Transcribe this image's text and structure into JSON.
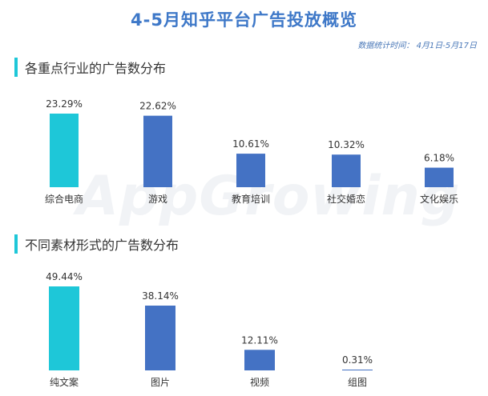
{
  "header": {
    "title": "4-5月知乎平台广告投放概览",
    "note": "数据统计时间： 4月1日-5月17日"
  },
  "watermark": {
    "text": "AppGrowing"
  },
  "sections": [
    {
      "label": "各重点行业的广告数分布"
    },
    {
      "label": "不同素材形式的广告数分布"
    }
  ],
  "colors": {
    "highlight": "#1ec7d8",
    "bar": "#4472c4",
    "accent": "#1ec7d8",
    "title": "#3e78c8"
  },
  "chart_data": [
    {
      "type": "bar",
      "title": "各重点行业的广告数分布",
      "categories": [
        "综合电商",
        "游戏",
        "教育培训",
        "社交婚恋",
        "文化娱乐"
      ],
      "values": [
        23.29,
        22.62,
        10.61,
        10.32,
        6.18
      ],
      "value_labels": [
        "23.29%",
        "22.62%",
        "10.61%",
        "10.32%",
        "6.18%"
      ],
      "unit": "%",
      "ylim": [
        0,
        23.29
      ],
      "grid": false,
      "legend": "none",
      "highlight_index": 0
    },
    {
      "type": "bar",
      "title": "不同素材形式的广告数分布",
      "categories": [
        "纯文案",
        "图片",
        "视频",
        "组图"
      ],
      "values": [
        49.44,
        38.14,
        12.11,
        0.31
      ],
      "value_labels": [
        "49.44%",
        "38.14%",
        "12.11%",
        "0.31%"
      ],
      "unit": "%",
      "ylim": [
        0,
        49.44
      ],
      "grid": false,
      "legend": "none",
      "highlight_index": 0
    }
  ]
}
